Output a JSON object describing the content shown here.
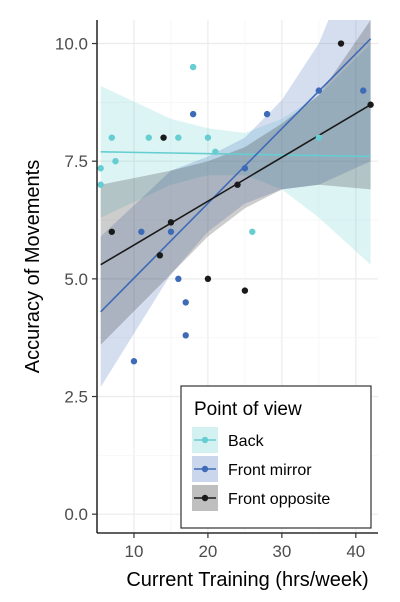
{
  "chart_data": {
    "type": "scatter",
    "xlabel": "Current Training (hrs/week)",
    "ylabel": "Accuracy of Movements",
    "xlim": [
      5,
      43
    ],
    "ylim": [
      -0.4,
      10.5
    ],
    "xticks": [
      10,
      20,
      30,
      40
    ],
    "yticks": [
      0.0,
      2.5,
      5.0,
      7.5,
      10.0
    ],
    "ytick_labels": [
      "0.0",
      "2.5",
      "5.0",
      "7.5",
      "10.0"
    ],
    "grid": true,
    "legend": {
      "title": "Point of view",
      "placement": "bottom-right"
    },
    "series": [
      {
        "name": "Back",
        "color": "#66cdd0",
        "points": [
          [
            5.5,
            7.35
          ],
          [
            5.5,
            7.0
          ],
          [
            7,
            8.0
          ],
          [
            7.5,
            7.5
          ],
          [
            12,
            8.0
          ],
          [
            16,
            8.0
          ],
          [
            18,
            9.5
          ],
          [
            20,
            8.0
          ],
          [
            21,
            7.7
          ],
          [
            26,
            6.0
          ],
          [
            35,
            8.0
          ]
        ],
        "fit": {
          "x": [
            5.5,
            42
          ],
          "y": [
            7.7,
            7.6
          ]
        },
        "ci": {
          "x": [
            5.5,
            15,
            20,
            25,
            30,
            35,
            42
          ],
          "lower": [
            6.3,
            7.0,
            7.2,
            7.2,
            6.9,
            6.3,
            5.3
          ],
          "upper": [
            9.1,
            8.4,
            8.2,
            8.1,
            8.4,
            8.9,
            10.0
          ]
        }
      },
      {
        "name": "Front mirror",
        "color": "#3e6bb7",
        "points": [
          [
            10,
            3.25
          ],
          [
            11,
            6.0
          ],
          [
            15,
            6.0
          ],
          [
            16,
            5.0
          ],
          [
            17,
            4.5
          ],
          [
            17,
            3.8
          ],
          [
            18,
            8.5
          ],
          [
            25,
            7.35
          ],
          [
            28,
            8.5
          ],
          [
            35,
            9.0
          ],
          [
            41,
            9.0
          ]
        ],
        "fit": {
          "x": [
            5.5,
            42
          ],
          "y": [
            4.3,
            10.1
          ]
        },
        "ci": {
          "x": [
            5.5,
            15,
            20,
            25,
            30,
            35,
            42
          ],
          "lower": [
            2.7,
            5.1,
            6.0,
            6.6,
            6.9,
            7.0,
            7.5
          ],
          "upper": [
            5.9,
            7.3,
            7.6,
            8.0,
            8.8,
            10.0,
            12.7
          ]
        }
      },
      {
        "name": "Front opposite",
        "color": "#1a1a1a",
        "points": [
          [
            7,
            6.0
          ],
          [
            13.5,
            5.5
          ],
          [
            14,
            8.0
          ],
          [
            15,
            6.2
          ],
          [
            20,
            5.0
          ],
          [
            24,
            7.0
          ],
          [
            25,
            4.75
          ],
          [
            38,
            10.0
          ],
          [
            42,
            8.7
          ]
        ],
        "fit": {
          "x": [
            5.5,
            42
          ],
          "y": [
            5.3,
            8.7
          ]
        },
        "ci": {
          "x": [
            5.5,
            15,
            20,
            25,
            30,
            35,
            42
          ],
          "lower": [
            3.6,
            5.1,
            5.9,
            6.5,
            6.9,
            7.0,
            6.9
          ],
          "upper": [
            7.0,
            7.3,
            7.5,
            7.8,
            8.3,
            8.9,
            10.5
          ]
        }
      }
    ]
  }
}
